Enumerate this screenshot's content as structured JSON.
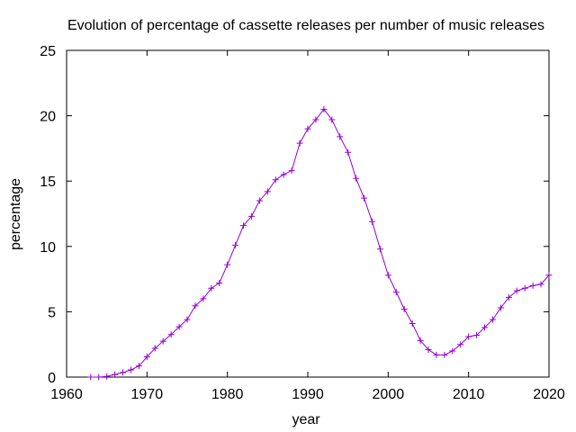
{
  "chart_data": {
    "type": "line",
    "title": "Evolution of percentage of cassette releases per number of music releases",
    "xlabel": "year",
    "ylabel": "percentage",
    "xlim": [
      1960,
      2020
    ],
    "ylim": [
      0,
      25
    ],
    "xticks": [
      1960,
      1970,
      1980,
      1990,
      2000,
      2010,
      2020
    ],
    "yticks": [
      0,
      5,
      10,
      15,
      20,
      25
    ],
    "grid": false,
    "legend": "none",
    "line_color": "#9400d3",
    "marker": "plus",
    "x": [
      1963,
      1964,
      1965,
      1966,
      1967,
      1968,
      1969,
      1970,
      1971,
      1972,
      1973,
      1974,
      1975,
      1976,
      1977,
      1978,
      1979,
      1980,
      1981,
      1982,
      1983,
      1984,
      1985,
      1986,
      1987,
      1988,
      1989,
      1990,
      1991,
      1992,
      1993,
      1994,
      1995,
      1996,
      1997,
      1998,
      1999,
      2000,
      2001,
      2002,
      2003,
      2004,
      2005,
      2006,
      2007,
      2008,
      2009,
      2010,
      2011,
      2012,
      2013,
      2014,
      2015,
      2016,
      2017,
      2018,
      2019,
      2020
    ],
    "y": [
      0.0,
      0.0,
      0.05,
      0.2,
      0.35,
      0.55,
      0.85,
      1.55,
      2.2,
      2.75,
      3.25,
      3.85,
      4.4,
      5.45,
      6.0,
      6.8,
      7.2,
      8.6,
      10.1,
      11.6,
      12.3,
      13.5,
      14.2,
      15.1,
      15.5,
      15.8,
      17.9,
      19.0,
      19.7,
      20.5,
      19.7,
      18.4,
      17.2,
      15.2,
      13.7,
      11.9,
      9.8,
      7.8,
      6.5,
      5.2,
      4.1,
      2.8,
      2.1,
      1.7,
      1.7,
      2.0,
      2.5,
      3.1,
      3.2,
      3.8,
      4.4,
      5.3,
      6.1,
      6.6,
      6.8,
      7.0,
      7.1,
      7.8
    ]
  }
}
